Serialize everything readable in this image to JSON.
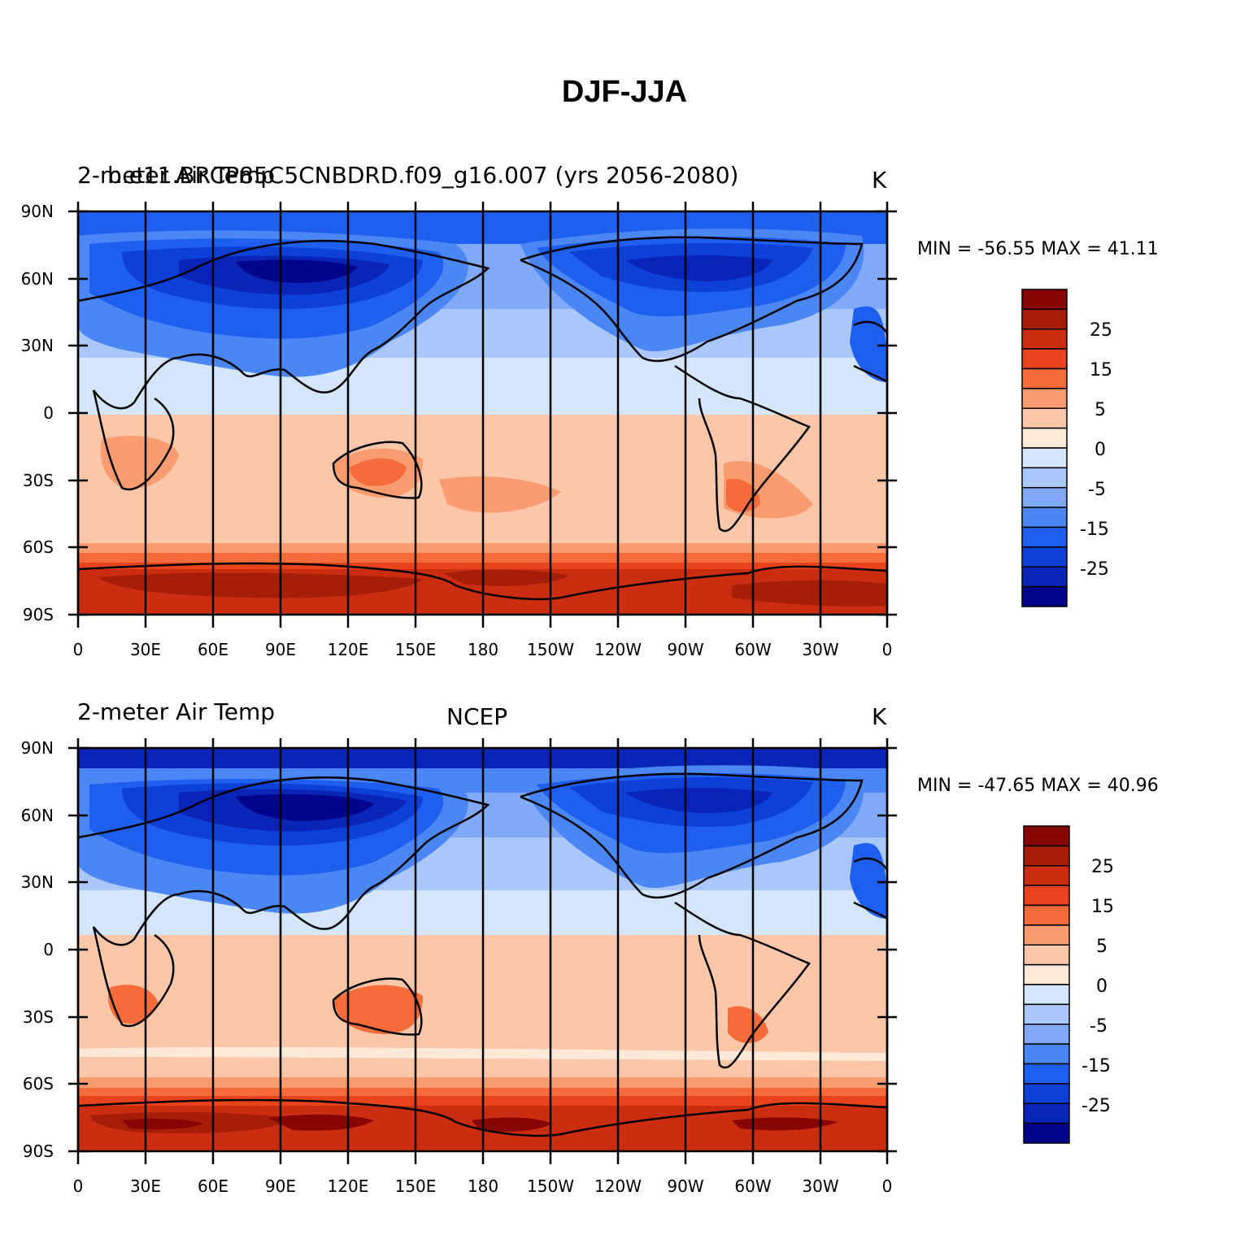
{
  "title": "DJF-JJA",
  "colors": {
    "scale": [
      "#00068c",
      "#0a24b8",
      "#0d3fd9",
      "#1f5fef",
      "#4b86f5",
      "#80aaf7",
      "#a9c7fb",
      "#d4e6fd",
      "#fee8d8",
      "#fcc7a9",
      "#fb9b70",
      "#f56b3a",
      "#e8431c",
      "#cc2d10",
      "#a61e08",
      "#870604"
    ],
    "coast": "#000000",
    "frame": "#000000"
  },
  "colorbar": {
    "labels": [
      "25",
      "15",
      "5",
      "0",
      "-5",
      "-15",
      "-25"
    ]
  },
  "axes": {
    "lat_labels": [
      "90N",
      "60N",
      "30N",
      "0",
      "30S",
      "60S",
      "90S"
    ],
    "lon_labels": [
      "0",
      "30E",
      "60E",
      "90E",
      "120E",
      "150E",
      "180",
      "150W",
      "120W",
      "90W",
      "60W",
      "30W",
      "0"
    ]
  },
  "panels": [
    {
      "left_title": "2-meter Air Temp",
      "center_title": "b.e11.BRCP85C5CNBDRD.f09_g16.007 (yrs 2056-2080)",
      "units": "K",
      "min_max": "MIN = -56.55 MAX =  41.11"
    },
    {
      "left_title": "2-meter Air Temp",
      "center_title": "NCEP",
      "units": "K",
      "min_max": "MIN = -47.65 MAX =  40.96"
    }
  ]
}
